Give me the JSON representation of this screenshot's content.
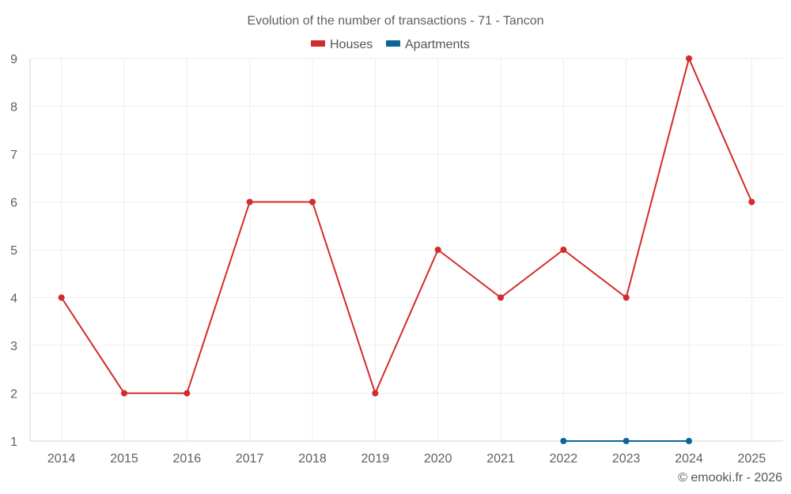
{
  "chart_data": {
    "type": "line",
    "title": "Evolution of the number of transactions - 71 - Tancon",
    "categories": [
      "2014",
      "2015",
      "2016",
      "2017",
      "2018",
      "2019",
      "2020",
      "2021",
      "2022",
      "2023",
      "2024",
      "2025"
    ],
    "series": [
      {
        "name": "Houses",
        "color": "#d32a2a",
        "values": [
          4,
          2,
          2,
          6,
          6,
          2,
          5,
          4,
          5,
          4,
          9,
          6
        ]
      },
      {
        "name": "Apartments",
        "color": "#0b6598",
        "values": [
          null,
          null,
          null,
          null,
          null,
          null,
          null,
          null,
          1,
          1,
          1,
          null
        ]
      }
    ],
    "ylim": [
      1,
      9
    ],
    "yticks": [
      1,
      2,
      3,
      4,
      5,
      6,
      7,
      8,
      9
    ],
    "xlabel": "",
    "ylabel": "",
    "grid": true,
    "legend": "top-center"
  },
  "credit": "© emooki.fr - 2026"
}
